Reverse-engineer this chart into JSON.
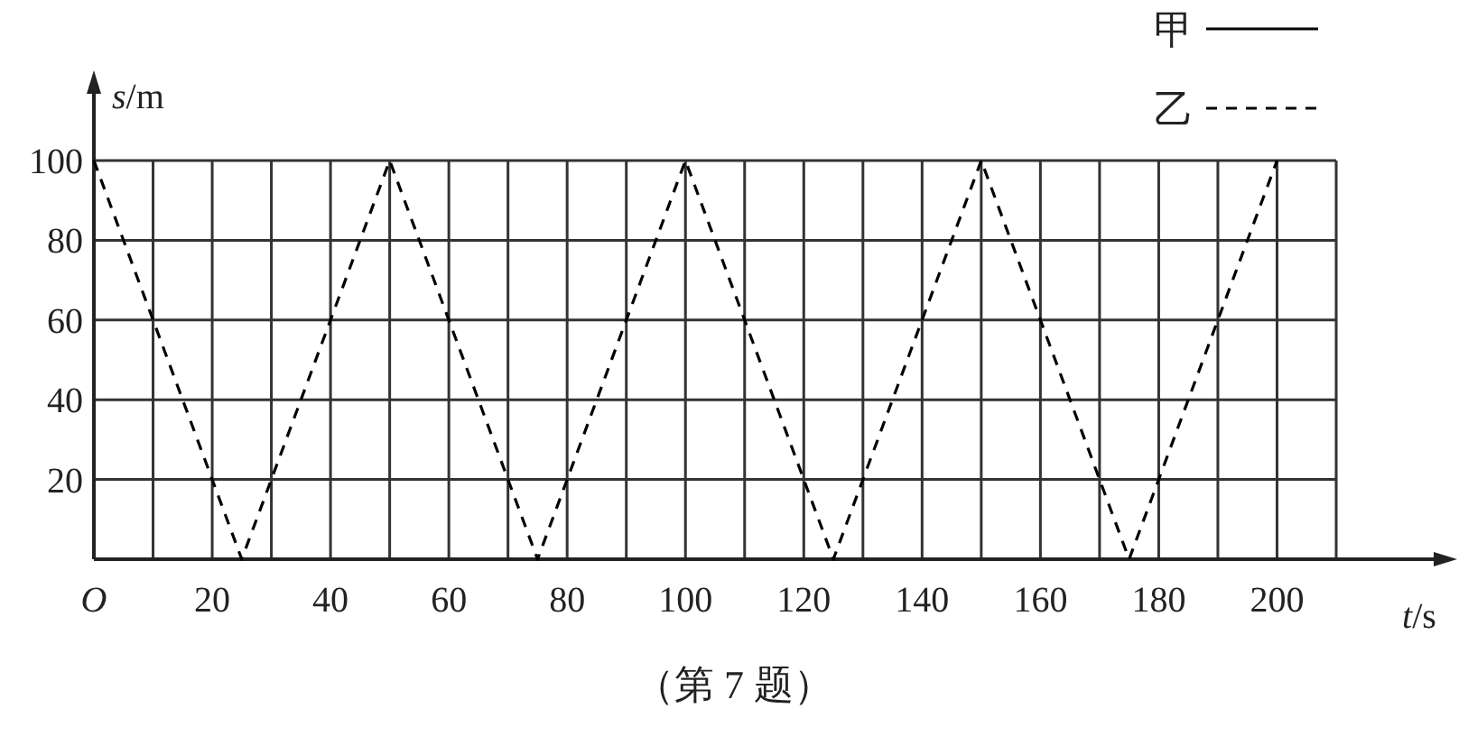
{
  "chart_data": {
    "type": "line",
    "xlabel": "*t*/s",
    "ylabel": "*s*/m",
    "annotations": [
      "（第 7 题）"
    ],
    "x": [
      0,
      25,
      50,
      75,
      100,
      125,
      150,
      175,
      200
    ],
    "series": [
      {
        "name": "甲",
        "color": "#000000",
        "line_style": "solid",
        "values": [
          null,
          null,
          null,
          null,
          null,
          null,
          null,
          null,
          null
        ]
      },
      {
        "name": "乙",
        "color": "#000000",
        "line_style": "dashed",
        "values": [
          100,
          0,
          100,
          0,
          100,
          0,
          100,
          0,
          100
        ]
      }
    ],
    "xlim": [
      0,
      210
    ],
    "ylim": [
      0,
      100
    ],
    "xticks": [
      {
        "value": 0,
        "label": "O"
      },
      {
        "value": 10,
        "label": null
      },
      20,
      {
        "value": 30,
        "label": null
      },
      40,
      {
        "value": 50,
        "label": null
      },
      60,
      {
        "value": 70,
        "label": null
      },
      80,
      {
        "value": 90,
        "label": null
      },
      100,
      {
        "value": 110,
        "label": null
      },
      120,
      {
        "value": 130,
        "label": null
      },
      140,
      {
        "value": 150,
        "label": null
      },
      160,
      {
        "value": 170,
        "label": null
      },
      180,
      {
        "value": 190,
        "label": null
      },
      200,
      {
        "value": 210,
        "label": null
      }
    ],
    "yticks": [
      20,
      40,
      60,
      80,
      100
    ],
    "grid": true,
    "legend": "top right",
    "marker": "none"
  }
}
